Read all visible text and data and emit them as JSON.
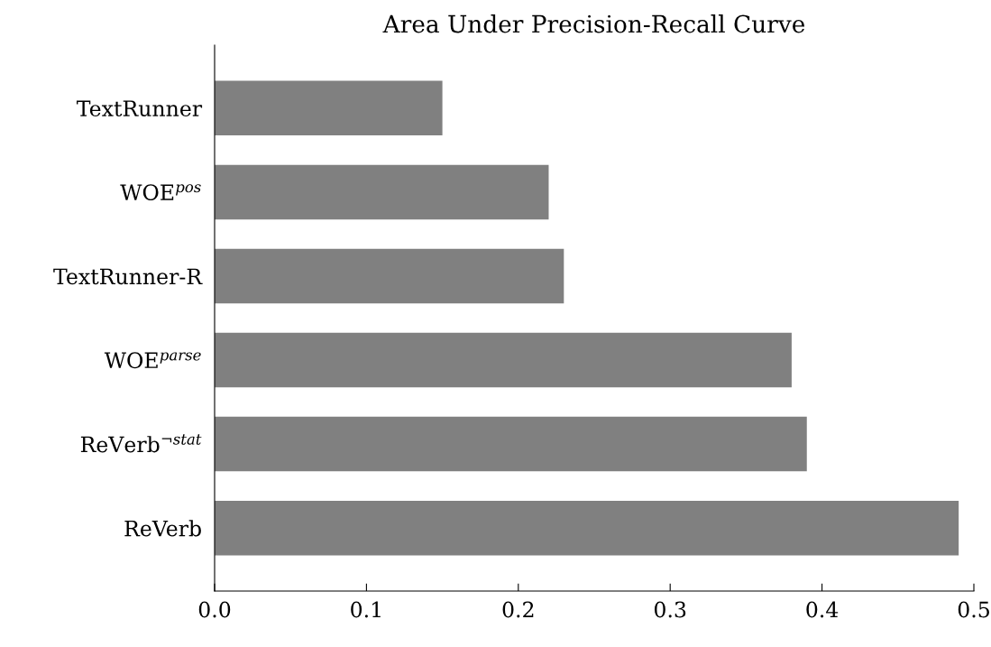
{
  "chart_data": {
    "type": "bar",
    "orientation": "horizontal",
    "title": "Area Under Precision-Recall Curve",
    "categories": [
      "TextRunner",
      "WOE$^{pos}$",
      "TextRunner-R",
      "WOE$^{parse}$",
      "ReVerb$^{¬stat}$",
      "ReVerb"
    ],
    "values": [
      0.15,
      0.22,
      0.23,
      0.38,
      0.39,
      0.49
    ],
    "color": "#808080",
    "xlim": [
      0,
      0.5
    ],
    "xticks": [
      {
        "value": 0,
        "label": "0.0"
      },
      0.1,
      0.2,
      0.3,
      0.4,
      0.5
    ],
    "grid": false,
    "legend": false
  }
}
